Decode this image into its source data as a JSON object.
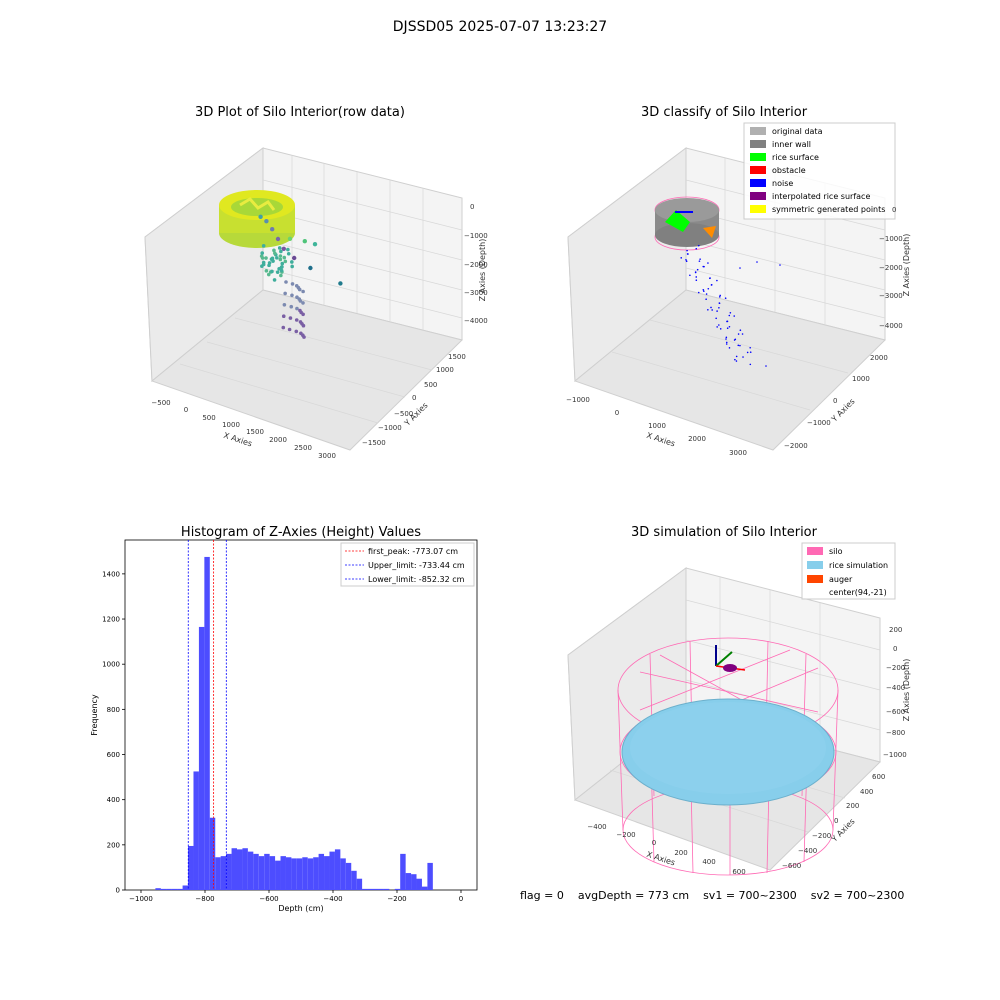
{
  "figure_title": "DJSSD05 2025-07-07 13:23:27",
  "footer": {
    "flag": "flag = 0",
    "avg_depth": "avgDepth = 773 cm",
    "sv1": "sv1 = 700~2300",
    "sv2": "sv2 = 700~2300"
  },
  "colors": {
    "original": "#b0b0b0",
    "inner_wall": "#808080",
    "rice_surface": "#00ff00",
    "obstacle": "#ff0000",
    "noise": "#0000ff",
    "interpolated": "#800080",
    "symmetric": "#ffff00",
    "silo": "#ff69b4",
    "rice_sim": "#87ceeb",
    "auger": "#ff4500",
    "hist_bar": "#4d4dff",
    "peak_line": "#ff0000",
    "limit_line": "#0000ff"
  },
  "chart_data": [
    {
      "type": "scatter",
      "title": "3D Plot of Silo Interior(row data)",
      "xlabel": "X Axies",
      "ylabel": "Y Axies",
      "zlabel": "Z Axies (Depth)",
      "x_ticks": [
        "−500",
        "0",
        "500",
        "1000",
        "1500",
        "2000",
        "2500",
        "3000"
      ],
      "y_ticks": [
        "1500",
        "1000",
        "500",
        "0",
        "−500",
        "−1000",
        "−1500"
      ],
      "z_ticks": [
        "0",
        "−1000",
        "−2000",
        "−3000",
        "−4000"
      ],
      "points": [
        {
          "x": 1500,
          "y": 1000,
          "z": -2100
        },
        {
          "x": 1900,
          "y": 1300,
          "z": -1900
        },
        {
          "x": 2200,
          "y": 1600,
          "z": -1800
        },
        {
          "x": 600,
          "y": 0,
          "z": -1700
        },
        {
          "x": 700,
          "y": -100,
          "z": -1900
        },
        {
          "x": 800,
          "y": -200,
          "z": -2300
        },
        {
          "x": 900,
          "y": -300,
          "z": -2800
        },
        {
          "x": 1000,
          "y": -400,
          "z": -3300
        },
        {
          "x": 1200,
          "y": -500,
          "z": -3700
        },
        {
          "x": 1500,
          "y": -700,
          "z": -4100
        },
        {
          "x": 2100,
          "y": -900,
          "z": -4600
        }
      ]
    },
    {
      "type": "scatter",
      "title": "3D classify of Silo Interior",
      "xlabel": "X Axies",
      "ylabel": "Y Axies",
      "zlabel": "Z Axies (Depth)",
      "x_ticks": [
        "−1000",
        "0",
        "1000",
        "2000",
        "3000"
      ],
      "y_ticks": [
        "2000",
        "1000",
        "0",
        "−1000",
        "−2000"
      ],
      "z_ticks": [
        "0",
        "−1000",
        "−2000",
        "−3000",
        "−4000"
      ],
      "legend": [
        "original data",
        "inner wall",
        "rice surface",
        "obstacle",
        "noise",
        "interpolated rice surface",
        "symmetric generated points"
      ]
    },
    {
      "type": "bar",
      "title": "Histogram of Z-Axies (Height) Values",
      "xlabel": "Depth (cm)",
      "ylabel": "Frequency",
      "xlim": [
        -1050,
        50
      ],
      "ylim": [
        0,
        1550
      ],
      "x_ticks": [
        -1000,
        -800,
        -600,
        -400,
        -200,
        0
      ],
      "y_ticks": [
        0,
        200,
        400,
        600,
        800,
        1000,
        1200,
        1400
      ],
      "bin_width": 17,
      "bin_starts": [
        -955,
        -938,
        -921,
        -904,
        -887,
        -870,
        -853,
        -836,
        -819,
        -802,
        -785,
        -768,
        -751,
        -734,
        -717,
        -700,
        -683,
        -666,
        -649,
        -632,
        -615,
        -598,
        -581,
        -564,
        -547,
        -530,
        -513,
        -496,
        -479,
        -462,
        -445,
        -428,
        -411,
        -394,
        -377,
        -360,
        -343,
        -326,
        -309,
        -292,
        -275,
        -258,
        -241,
        -224,
        -207,
        -190,
        -173,
        -156,
        -139,
        -122,
        -105,
        -88,
        -71,
        -54,
        -37,
        -20,
        -3
      ],
      "values": [
        8,
        5,
        5,
        5,
        5,
        20,
        195,
        525,
        1165,
        1475,
        320,
        145,
        150,
        160,
        185,
        180,
        185,
        170,
        160,
        150,
        160,
        150,
        130,
        150,
        145,
        140,
        140,
        145,
        140,
        145,
        160,
        150,
        170,
        180,
        140,
        120,
        85,
        50,
        5,
        5,
        5,
        5,
        5,
        0,
        5,
        160,
        75,
        70,
        50,
        15,
        120,
        0,
        0,
        0,
        0,
        0,
        0
      ],
      "vlines": [
        {
          "label": "first_peak: -773.07 cm",
          "x": -773.07,
          "role": "peak"
        },
        {
          "label": "Upper_limit: -733.44 cm",
          "x": -733.44,
          "role": "limit"
        },
        {
          "label": "Lower_limit: -852.32 cm",
          "x": -852.32,
          "role": "limit"
        }
      ]
    },
    {
      "type": "scatter",
      "title": "3D simulation of Silo Interior",
      "xlabel": "X Axies",
      "ylabel": "Y Axies",
      "zlabel": "Z Axies (Depth)",
      "x_ticks": [
        "−400",
        "−200",
        "0",
        "200",
        "400",
        "600"
      ],
      "y_ticks": [
        "600",
        "400",
        "200",
        "0",
        "−200",
        "−400",
        "−600"
      ],
      "z_ticks": [
        "200",
        "0",
        "−200",
        "−400",
        "−600",
        "−800",
        "−1000"
      ],
      "legend": [
        "silo",
        "rice simulation",
        "auger",
        "center(94,-21)"
      ]
    }
  ]
}
